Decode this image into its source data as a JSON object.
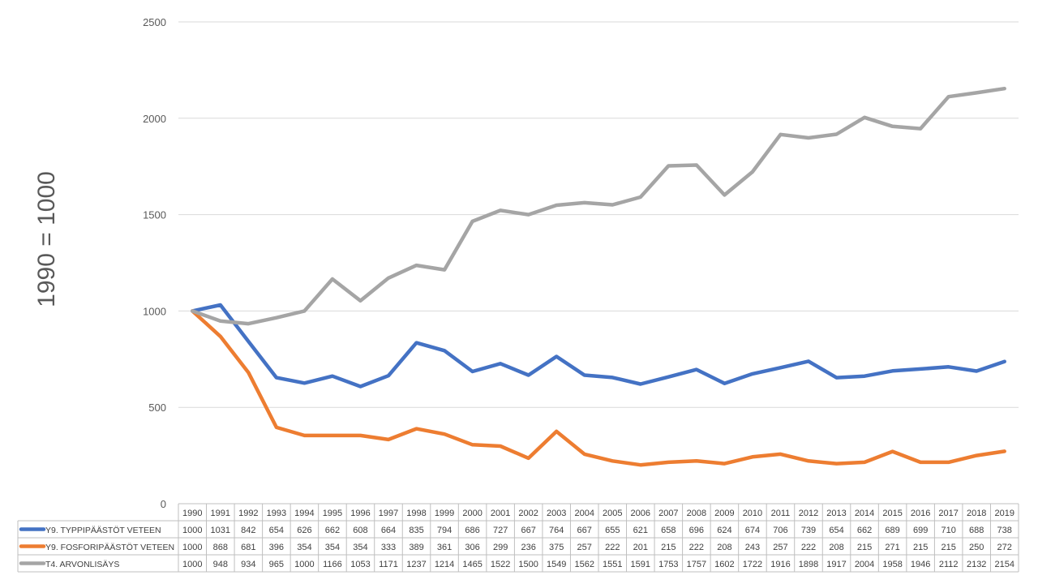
{
  "chart_data": {
    "type": "line",
    "ylabel": "1990 = 1000",
    "ylim": [
      0,
      2500
    ],
    "yticks": [
      0,
      500,
      1000,
      1500,
      2000,
      2500
    ],
    "grid": true,
    "legend": "data-table-below",
    "categories": [
      "1990",
      "1991",
      "1992",
      "1993",
      "1994",
      "1995",
      "1996",
      "1997",
      "1998",
      "1999",
      "2000",
      "2001",
      "2002",
      "2003",
      "2004",
      "2005",
      "2006",
      "2007",
      "2008",
      "2009",
      "2010",
      "2011",
      "2012",
      "2013",
      "2014",
      "2015",
      "2016",
      "2017",
      "2018",
      "2019"
    ],
    "series": [
      {
        "name": "Y9. TYPPIPÄÄSTÖT VETEEN",
        "color": "#4472C4",
        "values": [
          1000,
          1031,
          842,
          654,
          626,
          662,
          608,
          664,
          835,
          794,
          686,
          727,
          667,
          764,
          667,
          655,
          621,
          658,
          696,
          624,
          674,
          706,
          739,
          654,
          662,
          689,
          699,
          710,
          688,
          738
        ]
      },
      {
        "name": "Y9. FOSFORIPÄÄSTÖT VETEEN",
        "color": "#ED7D31",
        "values": [
          1000,
          868,
          681,
          396,
          354,
          354,
          354,
          333,
          389,
          361,
          306,
          299,
          236,
          375,
          257,
          222,
          201,
          215,
          222,
          208,
          243,
          257,
          222,
          208,
          215,
          271,
          215,
          215,
          250,
          272
        ]
      },
      {
        "name": "T4. ARVONLISÄYS",
        "color": "#A5A5A5",
        "values": [
          1000,
          948,
          934,
          965,
          1000,
          1166,
          1053,
          1171,
          1237,
          1214,
          1465,
          1522,
          1500,
          1549,
          1562,
          1551,
          1591,
          1753,
          1757,
          1602,
          1722,
          1916,
          1898,
          1917,
          2004,
          1958,
          1946,
          2112,
          2132,
          2154
        ]
      }
    ]
  }
}
